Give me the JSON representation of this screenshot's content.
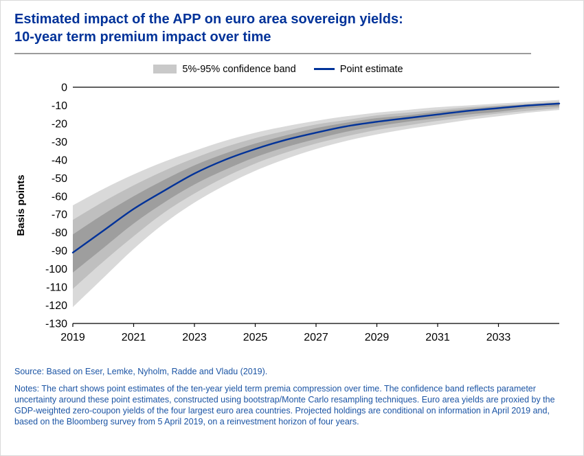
{
  "header": {
    "title_line1": "Estimated impact of the APP on euro area sovereign yields:",
    "title_line2": "10-year term premium impact over time"
  },
  "legend": {
    "band_label": "5%-95% confidence band",
    "line_label": "Point estimate"
  },
  "chart_data": {
    "type": "line",
    "title": "Estimated impact of the APP on euro area sovereign yields: 10-year term premium impact over time",
    "xlabel": "",
    "ylabel": "Basis points",
    "xlim": [
      2019,
      2035
    ],
    "ylim": [
      -130,
      0
    ],
    "xticks": [
      2019,
      2021,
      2023,
      2025,
      2027,
      2029,
      2031,
      2033
    ],
    "yticks": [
      0,
      -10,
      -20,
      -30,
      -40,
      -50,
      -60,
      -70,
      -80,
      -90,
      -100,
      -110,
      -120,
      -130
    ],
    "grid": false,
    "legend_position": "top",
    "x": [
      2019,
      2020,
      2021,
      2022,
      2023,
      2024,
      2025,
      2026,
      2027,
      2028,
      2029,
      2030,
      2031,
      2032,
      2033,
      2034,
      2035
    ],
    "series": [
      {
        "name": "Point estimate",
        "values": [
          -91,
          -79,
          -67,
          -57,
          -47.5,
          -40,
          -34,
          -29,
          -25,
          -21.5,
          -19,
          -17,
          -15,
          -13,
          -11.5,
          -10,
          -9
        ]
      }
    ],
    "bands": [
      {
        "name": "5%-95% confidence band (outer)",
        "color": "#d9d9d9",
        "upper": [
          -65,
          -56,
          -48,
          -41,
          -35,
          -29.5,
          -25,
          -21.5,
          -18.5,
          -16,
          -14,
          -12.5,
          -11,
          -10,
          -9,
          -8,
          -7
        ],
        "lower": [
          -121,
          -105,
          -89,
          -75,
          -63.5,
          -54,
          -46,
          -39.5,
          -34,
          -29.5,
          -26,
          -23,
          -20.5,
          -18,
          -16,
          -14,
          -12.5
        ]
      },
      {
        "name": "confidence band (middle)",
        "color": "#bfbfbf",
        "upper": [
          -73,
          -63,
          -54,
          -46,
          -39,
          -33,
          -28,
          -24,
          -20.5,
          -18,
          -15.5,
          -14,
          -12.5,
          -11,
          -10,
          -9,
          -8
        ],
        "lower": [
          -111,
          -96,
          -82,
          -69,
          -58.5,
          -49.5,
          -42,
          -36,
          -31,
          -27,
          -23.5,
          -21,
          -18.5,
          -16.5,
          -14.5,
          -13,
          -11.5
        ]
      },
      {
        "name": "confidence band (inner)",
        "color": "#9e9e9e",
        "upper": [
          -81,
          -70,
          -60,
          -51,
          -43,
          -36.5,
          -31,
          -26.5,
          -22.5,
          -19.5,
          -17,
          -15.5,
          -13.5,
          -12,
          -10.5,
          -9.5,
          -8.5
        ],
        "lower": [
          -102,
          -88.5,
          -75,
          -63.5,
          -53.5,
          -45.5,
          -38.5,
          -33,
          -28.5,
          -24.5,
          -21.5,
          -19,
          -17,
          -15,
          -13.5,
          -11.5,
          -10.5
        ]
      }
    ]
  },
  "footer": {
    "source": "Source: Based on Eser, Lemke, Nyholm, Radde and Vladu (2019).",
    "notes": "Notes: The chart shows point estimates of the ten-year yield term premia compression over time. The confidence band reflects parameter uncertainty around these point estimates, constructed using bootstrap/Monte Carlo resampling techniques. Euro area yields are proxied by the GDP-weighted zero-coupon yields of the four largest euro area countries. Projected holdings are conditional on information in April 2019 and, based on the Bloomberg survey from 5 April 2019, on a reinvestment horizon of four years."
  },
  "colors": {
    "title_blue": "#003299",
    "line_blue": "#003299",
    "notes_blue": "#1b54a4",
    "band_outer": "#d9d9d9",
    "band_middle": "#bfbfbf",
    "band_inner": "#9e9e9e",
    "axis": "#000000"
  }
}
